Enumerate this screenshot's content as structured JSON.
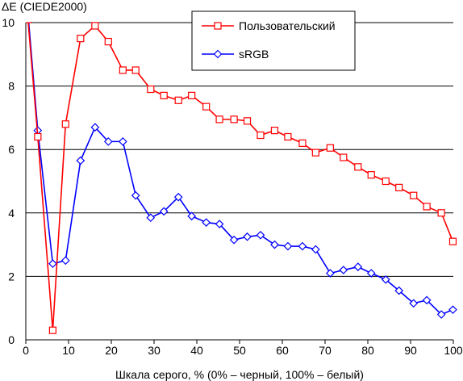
{
  "chart_data": {
    "type": "line",
    "ylabel": "ΔE (CIEDE2000)",
    "xlabel": "Шкала серого, % (0% – черный, 100% – белый)",
    "xlim": [
      0,
      100
    ],
    "ylim": [
      0,
      10
    ],
    "xticks": [
      0,
      10,
      20,
      30,
      40,
      50,
      60,
      70,
      80,
      90,
      100
    ],
    "yticks": [
      0,
      2,
      4,
      6,
      8,
      10
    ],
    "grid": "horizontal",
    "legend_position": "top-right",
    "series": [
      {
        "name": "Пользовательский",
        "color": "#ff0000",
        "marker": "square",
        "x": [
          0.5,
          2.8,
          6.3,
          9.3,
          12.8,
          16.2,
          19.3,
          22.7,
          25.7,
          29.2,
          32.3,
          35.7,
          38.8,
          42.2,
          45.3,
          48.7,
          51.8,
          54.9,
          58.2,
          61.3,
          64.7,
          67.8,
          71.2,
          74.3,
          77.7,
          80.8,
          84.2,
          87.3,
          90.7,
          93.8,
          97.2,
          99.9
        ],
        "y": [
          10.1,
          6.4,
          0.3,
          6.8,
          9.5,
          9.9,
          9.4,
          8.5,
          8.5,
          7.9,
          7.7,
          7.55,
          7.7,
          7.35,
          6.95,
          6.95,
          6.9,
          6.45,
          6.6,
          6.4,
          6.2,
          5.9,
          6.05,
          5.75,
          5.45,
          5.2,
          5.0,
          4.8,
          4.55,
          4.2,
          4.0,
          3.1
        ]
      },
      {
        "name": "sRGB",
        "color": "#0000ff",
        "marker": "diamond",
        "x": [
          0.5,
          2.8,
          6.3,
          9.3,
          12.8,
          16.2,
          19.3,
          22.7,
          25.7,
          29.2,
          32.3,
          35.7,
          38.8,
          42.2,
          45.3,
          48.7,
          51.8,
          54.9,
          58.2,
          61.3,
          64.7,
          67.8,
          71.2,
          74.3,
          77.7,
          80.8,
          84.2,
          87.3,
          90.7,
          93.8,
          97.2,
          99.9
        ],
        "y": [
          10.3,
          6.6,
          2.4,
          2.5,
          5.65,
          6.7,
          6.25,
          6.25,
          4.55,
          3.85,
          4.05,
          4.5,
          3.9,
          3.7,
          3.65,
          3.15,
          3.25,
          3.3,
          3.0,
          2.95,
          2.95,
          2.85,
          2.1,
          2.2,
          2.3,
          2.1,
          1.9,
          1.55,
          1.15,
          1.25,
          0.8,
          0.95
        ]
      }
    ]
  }
}
